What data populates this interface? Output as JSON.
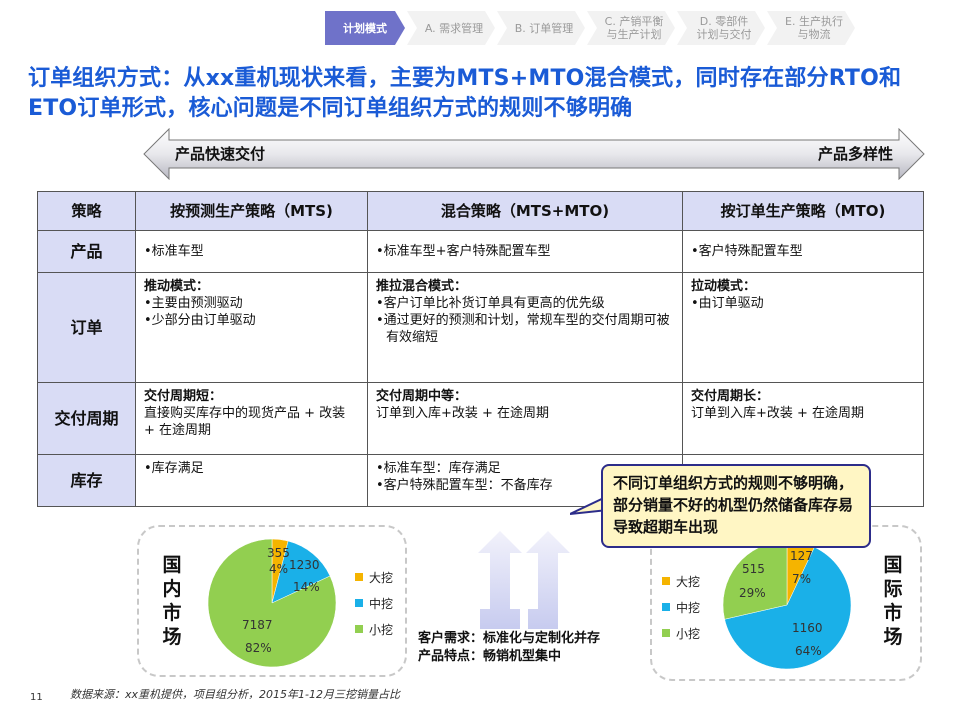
{
  "breadcrumb": [
    {
      "label": "计划模式",
      "active": true
    },
    {
      "label": "A. 需求管理",
      "active": false
    },
    {
      "label": "B. 订单管理",
      "active": false
    },
    {
      "label": "C. 产销平衡\n与生产计划",
      "active": false
    },
    {
      "label": "D. 零部件\n计划与交付",
      "active": false
    },
    {
      "label": "E. 生产执行\n与物流",
      "active": false
    }
  ],
  "headline": "订单组织方式：从xx重机现状来看，主要为MTS+MTO混合模式，同时存在部分RTO和ETO订单形式，核心问题是不同订单组织方式的规则不够明确",
  "arrow": {
    "left_label": "产品快速交付",
    "right_label": "产品多样性"
  },
  "table": {
    "headers": [
      "策略",
      "按预测生产策略（MTS)",
      "混合策略（MTS+MTO)",
      "按订单生产策略（MTO)"
    ],
    "rows": [
      {
        "label": "产品",
        "cells": [
          {
            "title": "",
            "lines": [
              "•标准车型"
            ]
          },
          {
            "title": "",
            "lines": [
              "•标准车型+客户特殊配置车型"
            ]
          },
          {
            "title": "",
            "lines": [
              "•客户特殊配置车型"
            ]
          }
        ]
      },
      {
        "label": "订单",
        "cells": [
          {
            "title": "推动模式：",
            "lines": [
              "•主要由预测驱动",
              "•少部分由订单驱动"
            ]
          },
          {
            "title": "推拉混合模式：",
            "lines": [
              "•客户订单比补货订单具有更高的优先级",
              "•通过更好的预测和计划，常规车型的交付周期可被有效缩短"
            ]
          },
          {
            "title": "拉动模式：",
            "lines": [
              "•由订单驱动"
            ]
          }
        ]
      },
      {
        "label": "交付周期",
        "cells": [
          {
            "title": "交付周期短：",
            "lines": [
              "直接购买库存中的现货产品 + 改装 + 在途周期"
            ]
          },
          {
            "title": "交付周期中等：",
            "lines": [
              "订单到入库+改装 + 在途周期"
            ]
          },
          {
            "title": "交付周期长：",
            "lines": [
              "订单到入库+改装 + 在途周期"
            ]
          }
        ]
      },
      {
        "label": "库存",
        "cells": [
          {
            "title": "",
            "lines": [
              "•库存满足"
            ]
          },
          {
            "title": "",
            "lines": [
              "•标准车型：库存满足",
              "•客户特殊配置车型：不备库存"
            ]
          },
          {
            "title": "",
            "lines": []
          }
        ]
      }
    ]
  },
  "callout": "不同订单组织方式的规则不够明确，部分销量不好的机型仍然储备库存易导致超期车出现",
  "demand": {
    "line1": "客户需求：标准化与定制化并存",
    "line2": "产品特点：畅销机型集中"
  },
  "colors": {
    "large": "#f5b400",
    "medium": "#1ab0e8",
    "small": "#92cf50",
    "accent": "#1a5bd6",
    "header_bg": "#d9dcf5"
  },
  "chart_data": [
    {
      "type": "pie",
      "title": "国内市场",
      "categories": [
        "大挖",
        "中挖",
        "小挖"
      ],
      "values": [
        355,
        1230,
        7187
      ],
      "percent_labels": [
        "4%",
        "14%",
        "82%"
      ],
      "value_labels": [
        "355",
        "1230",
        "7187"
      ],
      "legend": [
        "大挖",
        "中挖",
        "小挖"
      ]
    },
    {
      "type": "pie",
      "title": "国际市场",
      "categories": [
        "大挖",
        "中挖",
        "小挖"
      ],
      "values": [
        127,
        1160,
        515
      ],
      "percent_labels": [
        "7%",
        "64%",
        "29%"
      ],
      "value_labels": [
        "127",
        "1160",
        "515"
      ],
      "legend": [
        "大挖",
        "中挖",
        "小挖"
      ]
    }
  ],
  "footer": {
    "source": "数据来源：xx重机提供，项目组分析，2015年1-12月三挖销量占比",
    "page": "11"
  }
}
